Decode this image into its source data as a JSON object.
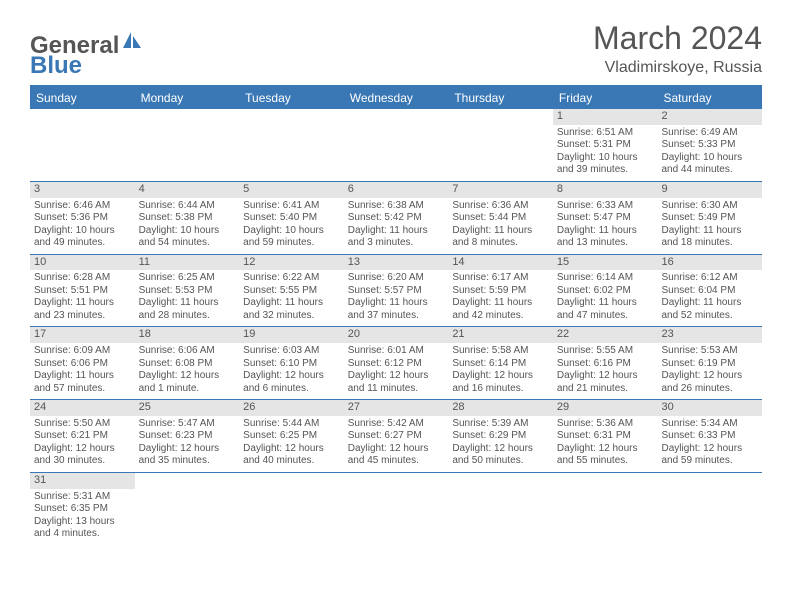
{
  "logo": {
    "general": "General",
    "blue": "Blue"
  },
  "title": {
    "month": "March 2024",
    "location": "Vladimirskoye, Russia"
  },
  "colors": {
    "header_blue": "#3a78b5",
    "gray_bar": "#e5e5e5",
    "text": "#555555",
    "background": "#ffffff"
  },
  "weekdays": [
    "Sunday",
    "Monday",
    "Tuesday",
    "Wednesday",
    "Thursday",
    "Friday",
    "Saturday"
  ],
  "weeks": [
    [
      {
        "day": "",
        "sunrise": "",
        "sunset": "",
        "daylight": ""
      },
      {
        "day": "",
        "sunrise": "",
        "sunset": "",
        "daylight": ""
      },
      {
        "day": "",
        "sunrise": "",
        "sunset": "",
        "daylight": ""
      },
      {
        "day": "",
        "sunrise": "",
        "sunset": "",
        "daylight": ""
      },
      {
        "day": "",
        "sunrise": "",
        "sunset": "",
        "daylight": ""
      },
      {
        "day": "1",
        "sunrise": "Sunrise: 6:51 AM",
        "sunset": "Sunset: 5:31 PM",
        "daylight": "Daylight: 10 hours and 39 minutes."
      },
      {
        "day": "2",
        "sunrise": "Sunrise: 6:49 AM",
        "sunset": "Sunset: 5:33 PM",
        "daylight": "Daylight: 10 hours and 44 minutes."
      }
    ],
    [
      {
        "day": "3",
        "sunrise": "Sunrise: 6:46 AM",
        "sunset": "Sunset: 5:36 PM",
        "daylight": "Daylight: 10 hours and 49 minutes."
      },
      {
        "day": "4",
        "sunrise": "Sunrise: 6:44 AM",
        "sunset": "Sunset: 5:38 PM",
        "daylight": "Daylight: 10 hours and 54 minutes."
      },
      {
        "day": "5",
        "sunrise": "Sunrise: 6:41 AM",
        "sunset": "Sunset: 5:40 PM",
        "daylight": "Daylight: 10 hours and 59 minutes."
      },
      {
        "day": "6",
        "sunrise": "Sunrise: 6:38 AM",
        "sunset": "Sunset: 5:42 PM",
        "daylight": "Daylight: 11 hours and 3 minutes."
      },
      {
        "day": "7",
        "sunrise": "Sunrise: 6:36 AM",
        "sunset": "Sunset: 5:44 PM",
        "daylight": "Daylight: 11 hours and 8 minutes."
      },
      {
        "day": "8",
        "sunrise": "Sunrise: 6:33 AM",
        "sunset": "Sunset: 5:47 PM",
        "daylight": "Daylight: 11 hours and 13 minutes."
      },
      {
        "day": "9",
        "sunrise": "Sunrise: 6:30 AM",
        "sunset": "Sunset: 5:49 PM",
        "daylight": "Daylight: 11 hours and 18 minutes."
      }
    ],
    [
      {
        "day": "10",
        "sunrise": "Sunrise: 6:28 AM",
        "sunset": "Sunset: 5:51 PM",
        "daylight": "Daylight: 11 hours and 23 minutes."
      },
      {
        "day": "11",
        "sunrise": "Sunrise: 6:25 AM",
        "sunset": "Sunset: 5:53 PM",
        "daylight": "Daylight: 11 hours and 28 minutes."
      },
      {
        "day": "12",
        "sunrise": "Sunrise: 6:22 AM",
        "sunset": "Sunset: 5:55 PM",
        "daylight": "Daylight: 11 hours and 32 minutes."
      },
      {
        "day": "13",
        "sunrise": "Sunrise: 6:20 AM",
        "sunset": "Sunset: 5:57 PM",
        "daylight": "Daylight: 11 hours and 37 minutes."
      },
      {
        "day": "14",
        "sunrise": "Sunrise: 6:17 AM",
        "sunset": "Sunset: 5:59 PM",
        "daylight": "Daylight: 11 hours and 42 minutes."
      },
      {
        "day": "15",
        "sunrise": "Sunrise: 6:14 AM",
        "sunset": "Sunset: 6:02 PM",
        "daylight": "Daylight: 11 hours and 47 minutes."
      },
      {
        "day": "16",
        "sunrise": "Sunrise: 6:12 AM",
        "sunset": "Sunset: 6:04 PM",
        "daylight": "Daylight: 11 hours and 52 minutes."
      }
    ],
    [
      {
        "day": "17",
        "sunrise": "Sunrise: 6:09 AM",
        "sunset": "Sunset: 6:06 PM",
        "daylight": "Daylight: 11 hours and 57 minutes."
      },
      {
        "day": "18",
        "sunrise": "Sunrise: 6:06 AM",
        "sunset": "Sunset: 6:08 PM",
        "daylight": "Daylight: 12 hours and 1 minute."
      },
      {
        "day": "19",
        "sunrise": "Sunrise: 6:03 AM",
        "sunset": "Sunset: 6:10 PM",
        "daylight": "Daylight: 12 hours and 6 minutes."
      },
      {
        "day": "20",
        "sunrise": "Sunrise: 6:01 AM",
        "sunset": "Sunset: 6:12 PM",
        "daylight": "Daylight: 12 hours and 11 minutes."
      },
      {
        "day": "21",
        "sunrise": "Sunrise: 5:58 AM",
        "sunset": "Sunset: 6:14 PM",
        "daylight": "Daylight: 12 hours and 16 minutes."
      },
      {
        "day": "22",
        "sunrise": "Sunrise: 5:55 AM",
        "sunset": "Sunset: 6:16 PM",
        "daylight": "Daylight: 12 hours and 21 minutes."
      },
      {
        "day": "23",
        "sunrise": "Sunrise: 5:53 AM",
        "sunset": "Sunset: 6:19 PM",
        "daylight": "Daylight: 12 hours and 26 minutes."
      }
    ],
    [
      {
        "day": "24",
        "sunrise": "Sunrise: 5:50 AM",
        "sunset": "Sunset: 6:21 PM",
        "daylight": "Daylight: 12 hours and 30 minutes."
      },
      {
        "day": "25",
        "sunrise": "Sunrise: 5:47 AM",
        "sunset": "Sunset: 6:23 PM",
        "daylight": "Daylight: 12 hours and 35 minutes."
      },
      {
        "day": "26",
        "sunrise": "Sunrise: 5:44 AM",
        "sunset": "Sunset: 6:25 PM",
        "daylight": "Daylight: 12 hours and 40 minutes."
      },
      {
        "day": "27",
        "sunrise": "Sunrise: 5:42 AM",
        "sunset": "Sunset: 6:27 PM",
        "daylight": "Daylight: 12 hours and 45 minutes."
      },
      {
        "day": "28",
        "sunrise": "Sunrise: 5:39 AM",
        "sunset": "Sunset: 6:29 PM",
        "daylight": "Daylight: 12 hours and 50 minutes."
      },
      {
        "day": "29",
        "sunrise": "Sunrise: 5:36 AM",
        "sunset": "Sunset: 6:31 PM",
        "daylight": "Daylight: 12 hours and 55 minutes."
      },
      {
        "day": "30",
        "sunrise": "Sunrise: 5:34 AM",
        "sunset": "Sunset: 6:33 PM",
        "daylight": "Daylight: 12 hours and 59 minutes."
      }
    ],
    [
      {
        "day": "31",
        "sunrise": "Sunrise: 5:31 AM",
        "sunset": "Sunset: 6:35 PM",
        "daylight": "Daylight: 13 hours and 4 minutes."
      },
      {
        "day": "",
        "sunrise": "",
        "sunset": "",
        "daylight": ""
      },
      {
        "day": "",
        "sunrise": "",
        "sunset": "",
        "daylight": ""
      },
      {
        "day": "",
        "sunrise": "",
        "sunset": "",
        "daylight": ""
      },
      {
        "day": "",
        "sunrise": "",
        "sunset": "",
        "daylight": ""
      },
      {
        "day": "",
        "sunrise": "",
        "sunset": "",
        "daylight": ""
      },
      {
        "day": "",
        "sunrise": "",
        "sunset": "",
        "daylight": ""
      }
    ]
  ]
}
